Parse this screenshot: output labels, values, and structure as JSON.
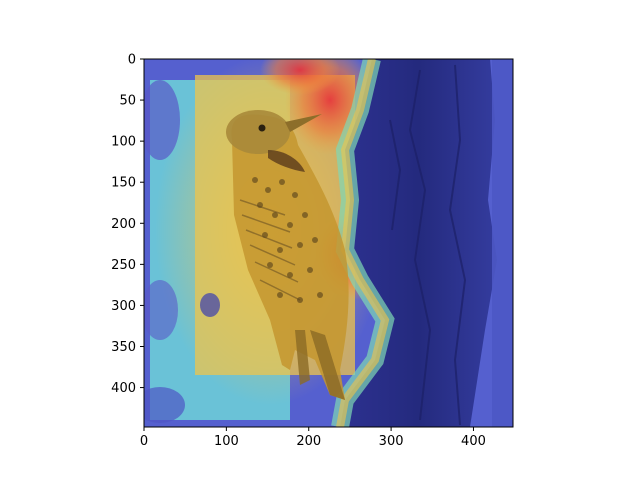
{
  "figure": {
    "type": "image",
    "description_hidden": true,
    "x_ticks": [
      "0",
      "100",
      "200",
      "300",
      "400"
    ],
    "y_ticks": [
      "0",
      "50",
      "100",
      "150",
      "200",
      "250",
      "300",
      "350",
      "400"
    ],
    "x_tick_values": [
      0,
      100,
      200,
      300,
      400
    ],
    "y_tick_values": [
      0,
      50,
      100,
      150,
      200,
      250,
      300,
      350,
      400
    ],
    "x_range": [
      0,
      448
    ],
    "y_range": [
      0,
      448
    ],
    "colors": {
      "axis": "#000000",
      "background": "#ffffff",
      "heat_hot": "#e8323a",
      "heat_warm": "#e9c24a",
      "heat_mid": "#5fd2d9",
      "heat_cool": "#4f5bd0",
      "heat_cold": "#2a2fa8"
    }
  }
}
